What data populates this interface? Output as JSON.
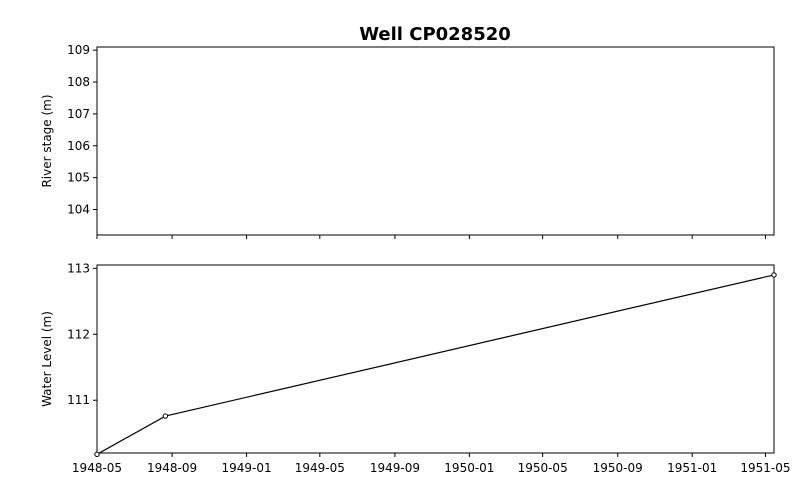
{
  "chart_data": {
    "type": "line",
    "title": "Well CP028520",
    "colors": {
      "line": "#000000",
      "axes": "#000000",
      "background": "#ffffff"
    },
    "grid": false,
    "legend": "none",
    "shared_x": {
      "type": "date",
      "range": [
        "1948-05-01",
        "1951-05-15"
      ],
      "ticks": [
        "1948-05-01",
        "1948-09-01",
        "1949-01-01",
        "1949-05-01",
        "1949-09-01",
        "1950-01-01",
        "1950-05-01",
        "1950-09-01",
        "1951-01-01",
        "1951-05-01"
      ],
      "tick_labels": [
        "1948-05",
        "1948-09",
        "1949-01",
        "1949-05",
        "1949-09",
        "1950-01",
        "1950-05",
        "1950-09",
        "1951-01",
        "1951-05"
      ]
    },
    "panels": [
      {
        "ylabel": "River stage (m)",
        "ylim": [
          103.2,
          109.1
        ],
        "yticks": [
          104,
          105,
          106,
          107,
          108,
          109
        ],
        "series": []
      },
      {
        "ylabel": "Water Level (m)",
        "ylim": [
          110.2,
          113.05
        ],
        "yticks": [
          111,
          112,
          113
        ],
        "series": [
          {
            "x": [
              "1948-05-01",
              "1948-08-21",
              "1951-05-15"
            ],
            "y": [
              110.18,
              110.76,
              112.9
            ]
          }
        ]
      }
    ]
  }
}
